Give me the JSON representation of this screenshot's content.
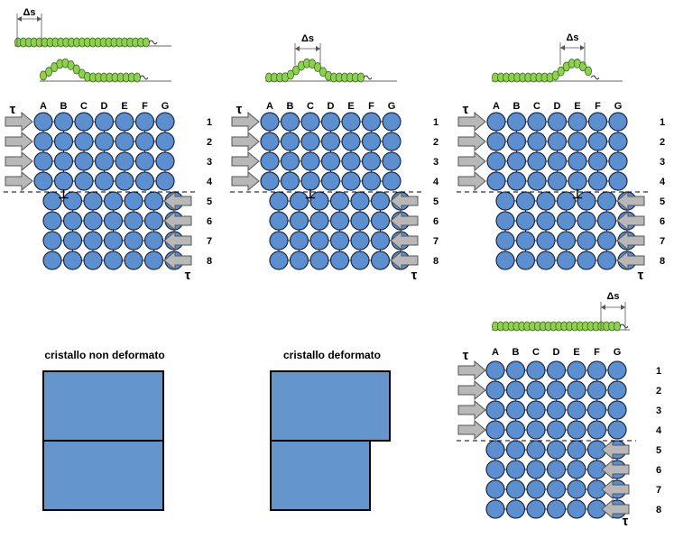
{
  "colors": {
    "atom_fill": "#5b8fcf",
    "atom_stroke": "#1f2b44",
    "arrow_fill": "#b8b8b8",
    "arrow_stroke": "#555555",
    "caterpillar_fill": "#8fd14f",
    "caterpillar_stroke": "#3c6e1e",
    "block_fill": "#6495cd",
    "block_stroke": "#000000"
  },
  "lattice": {
    "columns": [
      "A",
      "B",
      "C",
      "D",
      "E",
      "F",
      "G"
    ],
    "rows": [
      "1",
      "2",
      "3",
      "4",
      "5",
      "6",
      "7",
      "8"
    ],
    "shear_label": "τ",
    "dislocation_symbol": "⊥"
  },
  "delta_s_label": "Δs",
  "crystal_undeformed": {
    "caption": "cristallo non deformato"
  },
  "crystal_deformed": {
    "caption": "cristallo deformato"
  },
  "panels": [
    {
      "name": "stage-1",
      "dislocation_column": "B"
    },
    {
      "name": "stage-2",
      "dislocation_column": "C"
    },
    {
      "name": "stage-3",
      "dislocation_column": "E"
    },
    {
      "name": "stage-final",
      "dislocation_column": ""
    }
  ]
}
